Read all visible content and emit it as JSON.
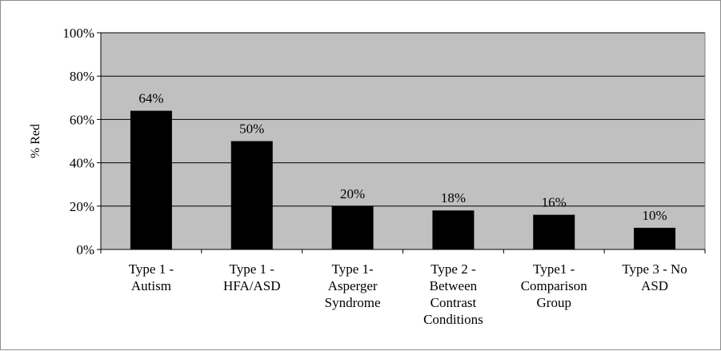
{
  "chart_data": {
    "type": "bar",
    "ylabel": "% Red",
    "ylim": [
      0,
      100
    ],
    "yticks": [
      0,
      20,
      40,
      60,
      80,
      100
    ],
    "ytick_labels": [
      "0%",
      "20%",
      "40%",
      "60%",
      "80%",
      "100%"
    ],
    "grid": true,
    "categories": [
      [
        "Type 1 -",
        "Autism"
      ],
      [
        "Type 1 -",
        "HFA/ASD"
      ],
      [
        "Type 1-",
        "Asperger",
        "Syndrome"
      ],
      [
        "Type 2 -",
        "Between",
        "Contrast",
        "Conditions"
      ],
      [
        "Type1 -",
        "Comparison",
        "Group"
      ],
      [
        "Type 3 - No",
        "ASD"
      ]
    ],
    "values": [
      64,
      50,
      20,
      18,
      16,
      10
    ],
    "data_labels": [
      "64%",
      "50%",
      "20%",
      "18%",
      "16%",
      "10%"
    ],
    "colors": {
      "bar": "#000000",
      "plot_bg": "#c0c0c0",
      "grid": "#000000"
    }
  }
}
